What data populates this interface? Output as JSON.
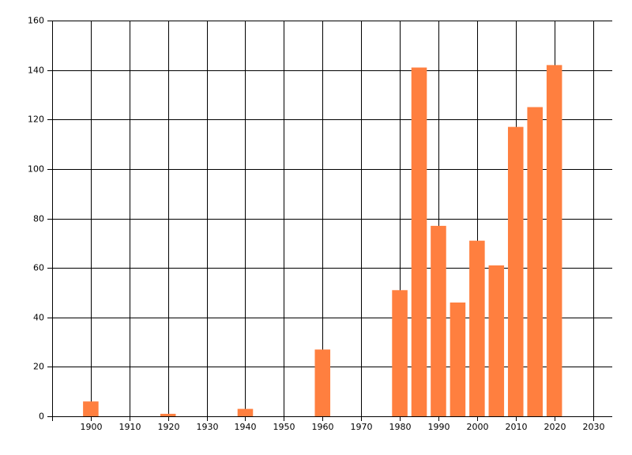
{
  "chart_data": {
    "type": "bar",
    "x": [
      1900,
      1920,
      1940,
      1960,
      1980,
      1985,
      1990,
      1995,
      2000,
      2005,
      2010,
      2015,
      2020
    ],
    "values": [
      6,
      1,
      3,
      27,
      51,
      141,
      77,
      46,
      71,
      61,
      117,
      125,
      142
    ],
    "color": "#ff7f3f",
    "xlim": [
      1890,
      2035
    ],
    "xticks": [
      1900,
      1910,
      1920,
      1930,
      1940,
      1950,
      1960,
      1970,
      1980,
      1990,
      2000,
      2010,
      2020,
      2030
    ],
    "ylim": [
      0,
      160
    ],
    "yticks": [
      0,
      20,
      40,
      60,
      80,
      100,
      120,
      140,
      160
    ],
    "grid": true
  }
}
